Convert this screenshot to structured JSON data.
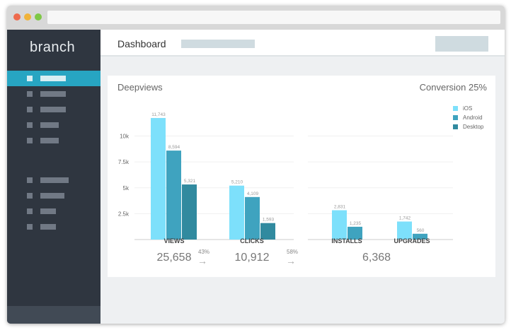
{
  "window": {
    "traffic_lights": [
      "#ee6a4d",
      "#f0b33a",
      "#7ec846"
    ]
  },
  "sidebar": {
    "logo": "branch",
    "active_index": 0
  },
  "header": {
    "title": "Dashboard"
  },
  "card": {
    "title": "Deepviews",
    "conversion": "Conversion 25%",
    "totals": [
      {
        "value": "25,658"
      },
      {
        "value": "10,912"
      },
      {
        "value": "6,368"
      }
    ],
    "rates": [
      "43%",
      "58%"
    ],
    "arrow": "→"
  },
  "chart_data": {
    "type": "bar",
    "categories": [
      "VIEWS",
      "CLICKS",
      "INSTALLS",
      "UPGRADES"
    ],
    "series": [
      {
        "name": "iOS",
        "color": "#7de0fb",
        "values": [
          11743,
          5210,
          2831,
          1742
        ],
        "labels": [
          "11,743",
          "5,210",
          "2,831",
          "1,742"
        ]
      },
      {
        "name": "Android",
        "color": "#3fa3bf",
        "values": [
          8594,
          4109,
          1235,
          560
        ],
        "labels": [
          "8,594",
          "4,109",
          "1,235",
          "560"
        ]
      },
      {
        "name": "Desktop",
        "color": "#318a9f",
        "values": [
          5321,
          1593,
          null,
          null
        ],
        "labels": [
          "5,321",
          "1,593",
          null,
          null
        ]
      }
    ],
    "yticks": [
      {
        "v": 2500,
        "label": "2.5k"
      },
      {
        "v": 5000,
        "label": "5k"
      },
      {
        "v": 7500,
        "label": "7.5k"
      },
      {
        "v": 10000,
        "label": "10k"
      }
    ],
    "ylim": [
      0,
      12500
    ],
    "legend": "top-right"
  }
}
